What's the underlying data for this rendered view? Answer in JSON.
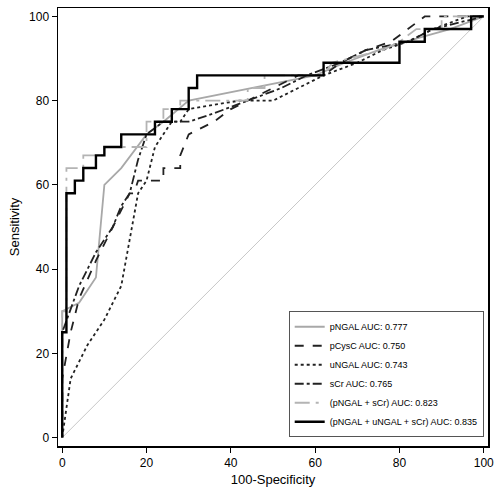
{
  "chart_data": {
    "type": "line",
    "x_label": "100-Specificity",
    "y_label": "Sensitivity",
    "xlim": [
      -1,
      101
    ],
    "ylim": [
      -2,
      102
    ],
    "xticks": [
      0,
      20,
      40,
      60,
      80,
      100
    ],
    "yticks": [
      0,
      20,
      40,
      60,
      80,
      100
    ],
    "grid": false,
    "legend": "bottom right",
    "series": [
      {
        "color": "#c8c8c8",
        "line_style": "solid",
        "x": [
          0,
          100
        ],
        "values": [
          0,
          100
        ]
      },
      {
        "name": "pNGAL AUC: 0.777",
        "color": "#a8a8a8",
        "line_style": "solid",
        "x": [
          0,
          0,
          4,
          8,
          10,
          14,
          20,
          24,
          30,
          45,
          60,
          67,
          75,
          85,
          92,
          100
        ],
        "values": [
          0,
          30,
          32,
          38,
          60,
          64,
          72,
          75,
          80,
          83,
          86,
          89,
          92,
          95,
          97,
          100
        ]
      },
      {
        "name": "pCysC AUC: 0.750",
        "color": "#222222",
        "line_style": "dash",
        "x": [
          0,
          0,
          2,
          4,
          8,
          12,
          16,
          17,
          18,
          24,
          24,
          28,
          28,
          30,
          36,
          40,
          44,
          50,
          56,
          62,
          66,
          72,
          78,
          82,
          86,
          100
        ],
        "values": [
          0,
          14,
          25,
          33,
          42,
          50,
          58,
          58,
          61,
          61,
          64,
          64,
          67,
          72,
          75,
          78,
          80,
          83,
          86,
          86,
          89,
          92,
          94,
          97,
          100,
          100
        ]
      },
      {
        "name": "uNGAL AUC: 0.743",
        "color": "#222222",
        "line_style": "dot",
        "x": [
          0,
          2,
          6,
          10,
          14,
          16,
          18,
          20,
          22,
          24,
          26,
          28,
          30,
          42,
          50,
          56,
          62,
          70,
          76,
          82,
          88,
          96,
          100
        ],
        "values": [
          0,
          14,
          22,
          28,
          36,
          47,
          58,
          61,
          69,
          72,
          75,
          75,
          78,
          80,
          80,
          83,
          86,
          89,
          92,
          94,
          97,
          100,
          100
        ]
      },
      {
        "name": "sCr AUC: 0.765",
        "color": "#222222",
        "line_style": "dashdot",
        "x": [
          0,
          0,
          4,
          8,
          12,
          14,
          16,
          18,
          20,
          24,
          30,
          36,
          44,
          52,
          58,
          66,
          72,
          82,
          88,
          100
        ],
        "values": [
          0,
          25,
          36,
          44,
          50,
          55,
          58,
          66,
          72,
          75,
          75,
          77,
          80,
          83,
          86,
          89,
          92,
          94,
          97,
          100
        ]
      },
      {
        "name": "(pNGAL + sCr) AUC: 0.823",
        "color": "#b4b4b4",
        "line_style": "longdashdot",
        "x": [
          0,
          0,
          1,
          1,
          5,
          5,
          10,
          10,
          20,
          20,
          24,
          24,
          28,
          28,
          44,
          44,
          48,
          48,
          62,
          64,
          76,
          80,
          84,
          90,
          90,
          100
        ],
        "values": [
          0,
          30,
          30,
          64,
          64,
          67,
          67,
          69,
          69,
          75,
          75,
          78,
          78,
          80,
          80,
          83,
          83,
          86,
          86,
          89,
          92,
          94,
          97,
          97,
          100,
          100
        ]
      },
      {
        "name": "(pNGAL + uNGAL + sCr) AUC: 0.835",
        "color": "#000000",
        "line_style": "solid",
        "x": [
          0,
          0,
          1,
          1,
          3,
          3,
          5,
          5,
          8,
          8,
          10,
          10,
          14,
          14,
          22,
          22,
          26,
          26,
          30,
          30,
          32,
          32,
          62,
          62,
          80,
          80,
          86,
          86,
          97,
          97,
          100
        ],
        "values": [
          0,
          25,
          25,
          58,
          58,
          61,
          61,
          64,
          64,
          67,
          67,
          69,
          69,
          72,
          72,
          75,
          75,
          78,
          78,
          83,
          83,
          86,
          86,
          89,
          89,
          94,
          94,
          97,
          97,
          100,
          100
        ]
      }
    ]
  }
}
